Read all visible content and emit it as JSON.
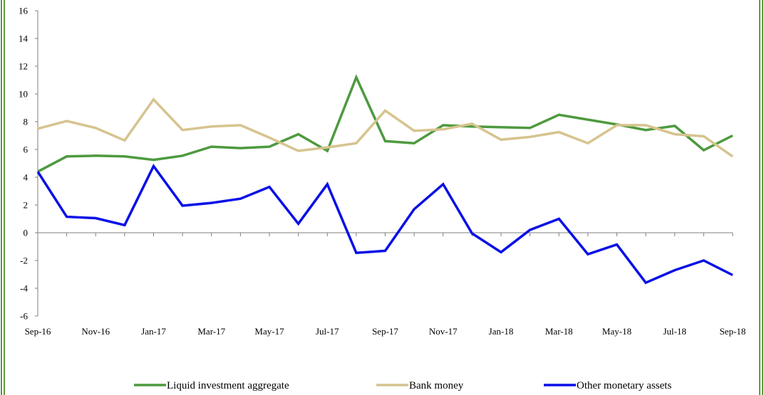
{
  "chart_data": {
    "type": "line",
    "title": "",
    "xlabel": "",
    "ylabel": "",
    "ylim": [
      -6,
      16
    ],
    "ytick_step": 2,
    "yticks": [
      "16",
      "14",
      "12",
      "10",
      "8",
      "6",
      "4",
      "2",
      "0",
      "-2",
      "-4",
      "-6"
    ],
    "x": [
      "Sep-16",
      "Oct-16",
      "Nov-16",
      "Dec-16",
      "Jan-17",
      "Feb-17",
      "Mar-17",
      "Apr-17",
      "May-17",
      "Jun-17",
      "Jul-17",
      "Aug-17",
      "Sep-17",
      "Oct-17",
      "Nov-17",
      "Dec-17",
      "Jan-18",
      "Feb-18",
      "Mar-18",
      "Apr-18",
      "May-18",
      "Jun-18",
      "Jul-18",
      "Aug-18",
      "Sep-18"
    ],
    "xtick_labels": [
      "Sep-16",
      "",
      "Nov-16",
      "",
      "Jan-17",
      "",
      "Mar-17",
      "",
      "May-17",
      "",
      "Jul-17",
      "",
      "Sep-17",
      "",
      "Nov-17",
      "",
      "Jan-18",
      "",
      "Mar-18",
      "",
      "May-18",
      "",
      "Jul-18",
      "",
      "Sep-18"
    ],
    "grid": false,
    "legend_position": "bottom",
    "series": [
      {
        "name": "Liquid investment aggregate",
        "color": "#4e9a3f",
        "values": [
          4.4,
          5.5,
          5.55,
          5.5,
          5.25,
          5.55,
          6.2,
          6.1,
          6.2,
          7.1,
          5.9,
          11.2,
          6.6,
          6.45,
          7.75,
          7.65,
          7.6,
          7.55,
          8.5,
          8.15,
          7.8,
          7.4,
          7.7,
          5.95,
          7.0
        ]
      },
      {
        "name": "Bank money",
        "color": "#d6c48f",
        "values": [
          7.5,
          8.05,
          7.55,
          6.65,
          9.6,
          7.4,
          7.65,
          7.75,
          6.85,
          5.9,
          6.15,
          6.45,
          8.8,
          7.35,
          7.45,
          7.85,
          6.7,
          6.9,
          7.25,
          6.45,
          7.75,
          7.75,
          7.1,
          6.95,
          5.5
        ]
      },
      {
        "name": "Other monetary assets",
        "color": "#0a10e6",
        "values": [
          4.4,
          1.15,
          1.05,
          0.55,
          4.8,
          1.95,
          2.15,
          2.45,
          3.3,
          0.65,
          3.5,
          -1.45,
          -1.3,
          1.7,
          3.5,
          -0.05,
          -1.4,
          0.2,
          1.0,
          -1.55,
          -0.85,
          -3.6,
          -2.7,
          -2.0,
          -3.05
        ]
      }
    ]
  }
}
